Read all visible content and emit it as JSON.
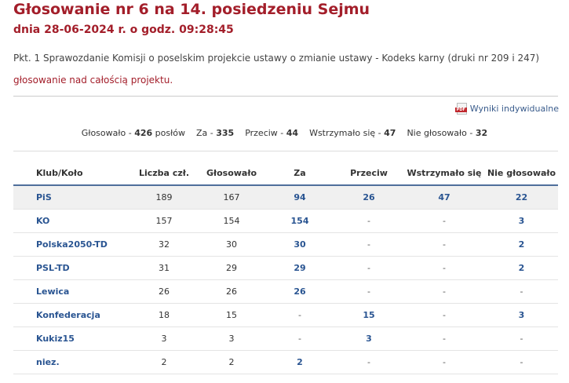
{
  "page": {
    "title": "Głosowanie nr 6 na 14. posiedzeniu Sejmu",
    "subtitle": "dnia 28-06-2024 r. o godz. 09:28:45",
    "description": "Pkt. 1 Sprawozdanie Komisji o poselskim projekcie ustawy o zmianie ustawy - Kodeks karny (druki nr 209 i 247)",
    "vote_subject": "głosowanie nad całością projektu.",
    "pdf_link_label": "Wyniki indywidualne",
    "pdf_icon": "pdf-file-icon"
  },
  "summary": {
    "voted_label": "Głosowało -",
    "voted_value": "426",
    "voted_unit": "posłów",
    "for_label": "Za -",
    "for_value": "335",
    "against_label": "Przeciw -",
    "against_value": "44",
    "abstain_label": "Wstrzymało się -",
    "abstain_value": "47",
    "notvoted_label": "Nie głosowało -",
    "notvoted_value": "32"
  },
  "table": {
    "headers": [
      "Klub/Koło",
      "Liczba czł.",
      "Głosowało",
      "Za",
      "Przeciw",
      "Wstrzymało się",
      "Nie głosowało"
    ],
    "rows": [
      {
        "club": "PiS",
        "members": "189",
        "voted": "167",
        "for": "94",
        "against": "26",
        "abstain": "47",
        "notvoted": "22"
      },
      {
        "club": "KO",
        "members": "157",
        "voted": "154",
        "for": "154",
        "against": "-",
        "abstain": "-",
        "notvoted": "3"
      },
      {
        "club": "Polska2050-TD",
        "members": "32",
        "voted": "30",
        "for": "30",
        "against": "-",
        "abstain": "-",
        "notvoted": "2"
      },
      {
        "club": "PSL-TD",
        "members": "31",
        "voted": "29",
        "for": "29",
        "against": "-",
        "abstain": "-",
        "notvoted": "2"
      },
      {
        "club": "Lewica",
        "members": "26",
        "voted": "26",
        "for": "26",
        "against": "-",
        "abstain": "-",
        "notvoted": "-"
      },
      {
        "club": "Konfederacja",
        "members": "18",
        "voted": "15",
        "for": "-",
        "against": "15",
        "abstain": "-",
        "notvoted": "3"
      },
      {
        "club": "Kukiz15",
        "members": "3",
        "voted": "3",
        "for": "-",
        "against": "3",
        "abstain": "-",
        "notvoted": "-"
      },
      {
        "club": "niez.",
        "members": "2",
        "voted": "2",
        "for": "2",
        "against": "-",
        "abstain": "-",
        "notvoted": "-"
      }
    ]
  },
  "colors": {
    "title": "#a31e2a",
    "link": "#2a5592",
    "header_border": "#4f6f9b"
  }
}
